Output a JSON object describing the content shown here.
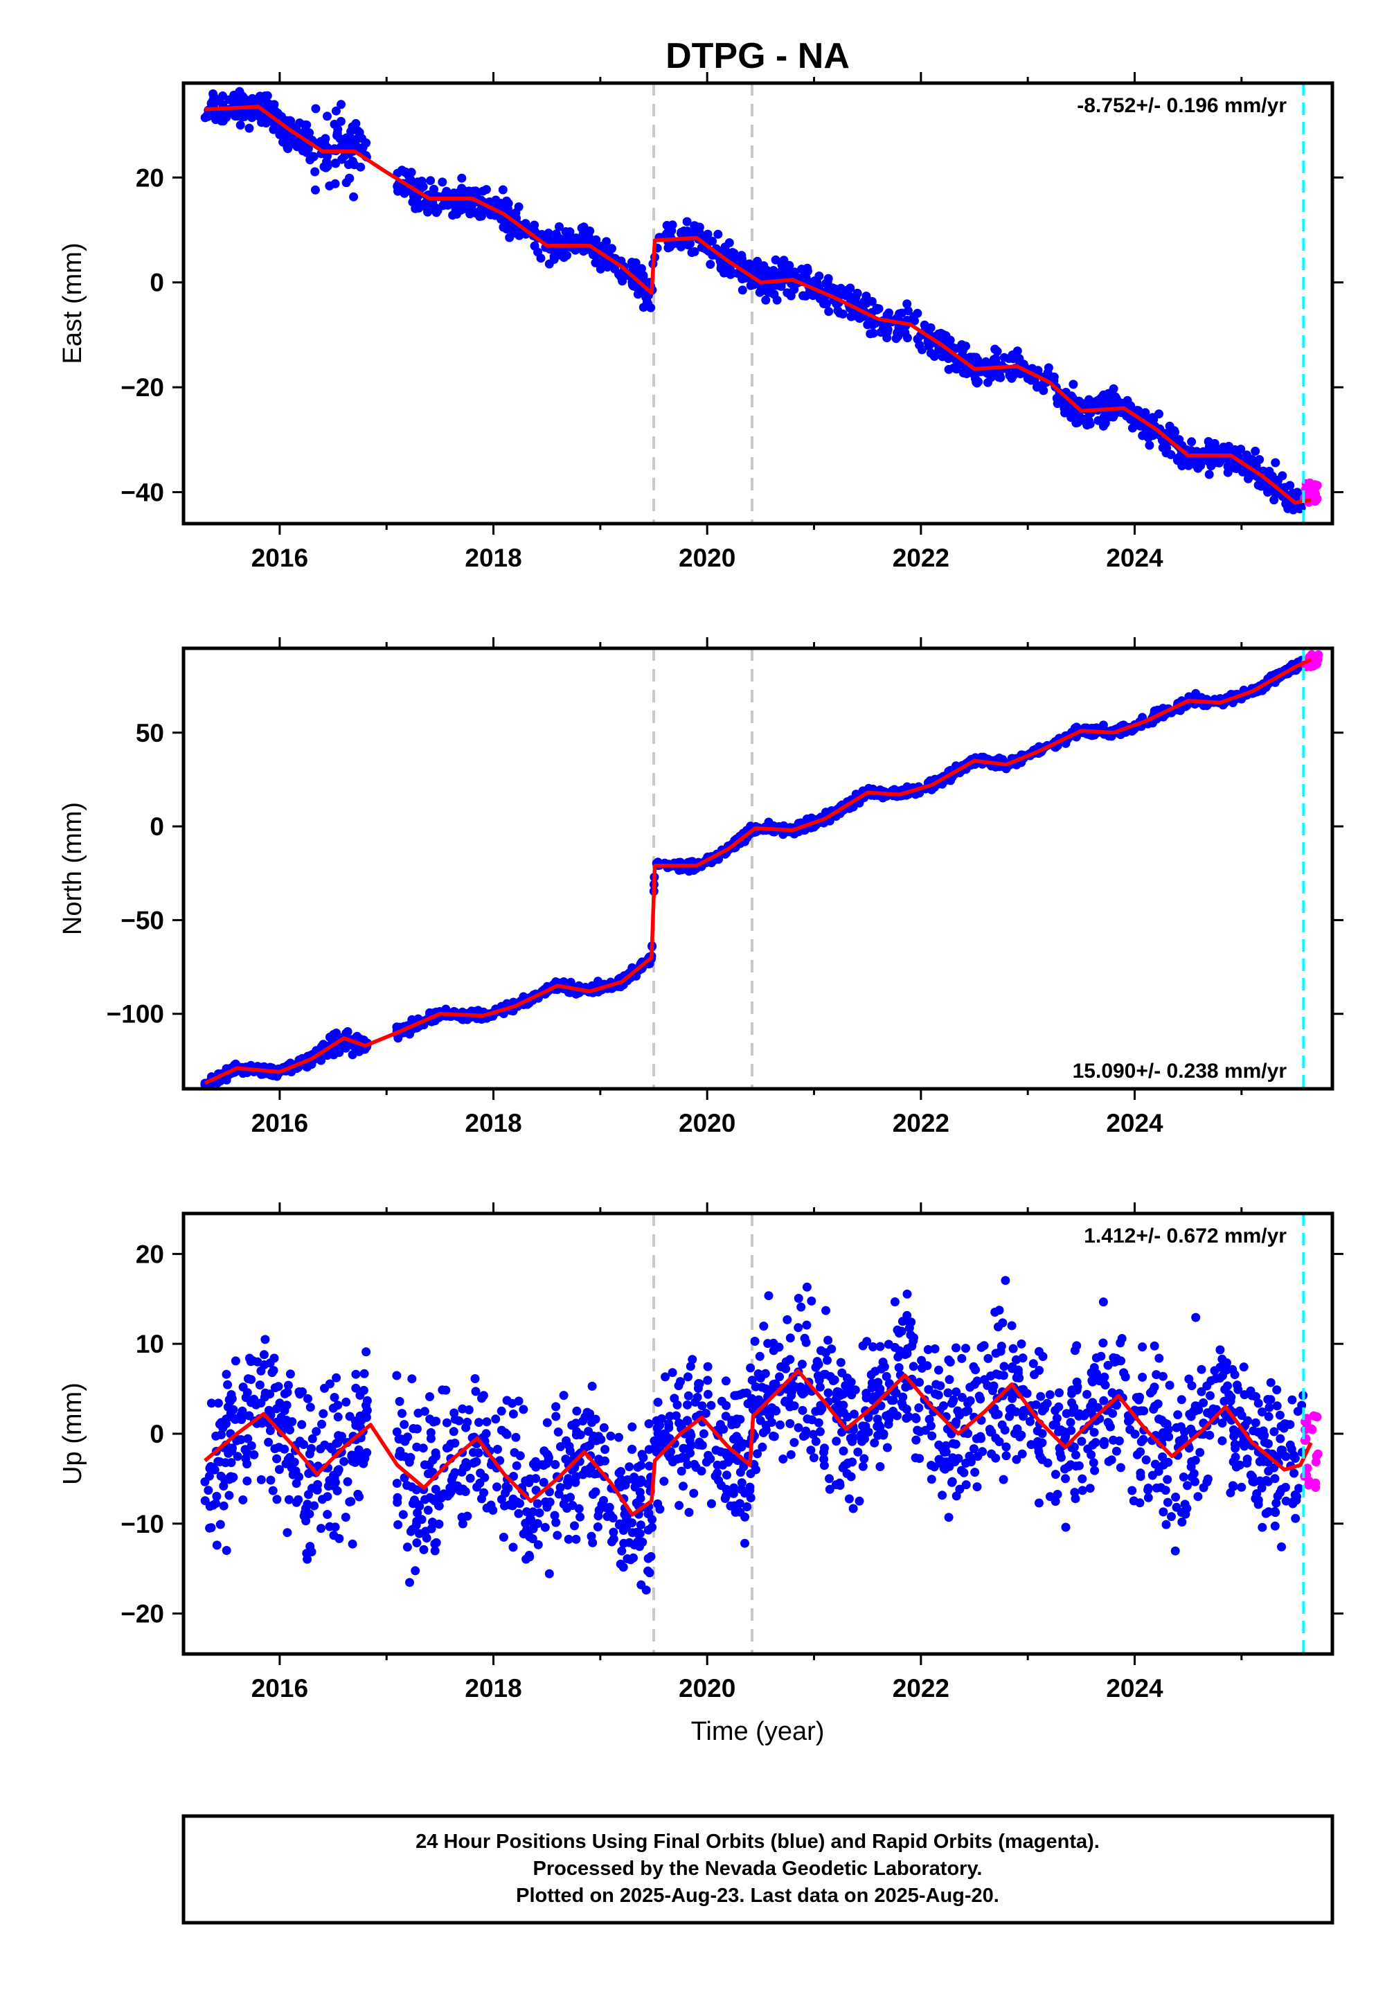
{
  "chart_data": {
    "type": "scatter",
    "title": "DTPG - NA",
    "xlabel": "Time (year)",
    "x_tick_labels": [
      "2016",
      "2018",
      "2020",
      "2022",
      "2024"
    ],
    "xlim": [
      2015.1,
      2025.85
    ],
    "event_lines": {
      "gray_dashed": [
        2019.5,
        2020.42
      ],
      "cyan_dashed": 2025.58
    },
    "colors": {
      "final_orbits": "#0000ff",
      "rapid_orbits": "#ff00ff",
      "model": "#ff0000",
      "event": "#c8c8c8",
      "last_data": "#00ffff"
    },
    "panels": [
      {
        "ylabel": "East (mm)",
        "ylim": [
          -46,
          38
        ],
        "y_ticks": [
          20,
          0,
          -20,
          -40
        ],
        "rate_label": "-8.752+/- 0.196 mm/yr",
        "rate_position": "top-right",
        "model_points": [
          [
            2015.3,
            33
          ],
          [
            2015.8,
            33.5
          ],
          [
            2016.1,
            29
          ],
          [
            2016.4,
            25
          ],
          [
            2016.7,
            25
          ],
          [
            2017.0,
            21
          ],
          [
            2017.4,
            16
          ],
          [
            2017.8,
            16
          ],
          [
            2018.1,
            13
          ],
          [
            2018.5,
            7
          ],
          [
            2018.9,
            7
          ],
          [
            2019.2,
            3
          ],
          [
            2019.48,
            -2
          ],
          [
            2019.51,
            8
          ],
          [
            2019.9,
            8.5
          ],
          [
            2020.2,
            4
          ],
          [
            2020.5,
            0
          ],
          [
            2020.8,
            0.5
          ],
          [
            2021.2,
            -3
          ],
          [
            2021.6,
            -7
          ],
          [
            2021.9,
            -8
          ],
          [
            2022.2,
            -12
          ],
          [
            2022.5,
            -16.5
          ],
          [
            2022.9,
            -16
          ],
          [
            2023.2,
            -19
          ],
          [
            2023.5,
            -24.5
          ],
          [
            2023.9,
            -24
          ],
          [
            2024.2,
            -28
          ],
          [
            2024.5,
            -33
          ],
          [
            2024.9,
            -33
          ],
          [
            2025.2,
            -37
          ],
          [
            2025.5,
            -42
          ],
          [
            2025.65,
            -41.5
          ]
        ],
        "scatter_noise_mm": 1.6,
        "rapid_range_mm": [
          -42,
          -38
        ]
      },
      {
        "ylabel": "North (mm)",
        "ylim": [
          -140,
          95
        ],
        "y_ticks": [
          50,
          0,
          -50,
          -100
        ],
        "rate_label": "15.090+/- 0.238 mm/yr",
        "rate_position": "bottom-right",
        "model_points": [
          [
            2015.3,
            -137
          ],
          [
            2015.6,
            -129
          ],
          [
            2016.0,
            -131
          ],
          [
            2016.3,
            -124
          ],
          [
            2016.6,
            -113
          ],
          [
            2016.8,
            -117
          ],
          [
            2017.1,
            -110
          ],
          [
            2017.5,
            -100
          ],
          [
            2017.9,
            -101
          ],
          [
            2018.2,
            -96
          ],
          [
            2018.6,
            -85
          ],
          [
            2018.9,
            -88
          ],
          [
            2019.2,
            -83
          ],
          [
            2019.48,
            -70
          ],
          [
            2019.51,
            -21
          ],
          [
            2019.9,
            -21
          ],
          [
            2020.2,
            -12
          ],
          [
            2020.45,
            -1
          ],
          [
            2020.8,
            -2
          ],
          [
            2021.1,
            4
          ],
          [
            2021.5,
            18
          ],
          [
            2021.8,
            17
          ],
          [
            2022.1,
            22
          ],
          [
            2022.5,
            35
          ],
          [
            2022.8,
            33
          ],
          [
            2023.1,
            40
          ],
          [
            2023.5,
            51
          ],
          [
            2023.8,
            50
          ],
          [
            2024.1,
            56
          ],
          [
            2024.5,
            67
          ],
          [
            2024.8,
            66
          ],
          [
            2025.1,
            72
          ],
          [
            2025.5,
            85
          ],
          [
            2025.65,
            89
          ]
        ],
        "scatter_noise_mm": 1.4,
        "rapid_range_mm": [
          85,
          92
        ]
      },
      {
        "ylabel": "Up (mm)",
        "ylim": [
          -24.5,
          24.5
        ],
        "y_ticks": [
          20,
          10,
          0,
          -10,
          -20
        ],
        "rate_label": "1.412+/- 0.672 mm/yr",
        "rate_position": "top-right",
        "model_points": [
          [
            2015.3,
            -3
          ],
          [
            2015.6,
            0
          ],
          [
            2015.85,
            2.2
          ],
          [
            2016.1,
            -1
          ],
          [
            2016.35,
            -4.5
          ],
          [
            2016.6,
            -1.5
          ],
          [
            2016.85,
            1
          ],
          [
            2017.1,
            -3.5
          ],
          [
            2017.35,
            -6
          ],
          [
            2017.6,
            -3
          ],
          [
            2017.85,
            -0.5
          ],
          [
            2018.1,
            -4.5
          ],
          [
            2018.35,
            -7.5
          ],
          [
            2018.6,
            -5
          ],
          [
            2018.85,
            -2
          ],
          [
            2019.1,
            -5.5
          ],
          [
            2019.3,
            -9
          ],
          [
            2019.48,
            -7.5
          ],
          [
            2019.51,
            -3
          ],
          [
            2019.75,
            0
          ],
          [
            2019.95,
            1.8
          ],
          [
            2020.2,
            -1.5
          ],
          [
            2020.4,
            -3.5
          ],
          [
            2020.43,
            2
          ],
          [
            2020.6,
            4
          ],
          [
            2020.85,
            7
          ],
          [
            2021.1,
            3.5
          ],
          [
            2021.3,
            0.5
          ],
          [
            2021.55,
            3
          ],
          [
            2021.85,
            6.5
          ],
          [
            2022.1,
            3
          ],
          [
            2022.35,
            0
          ],
          [
            2022.6,
            2.5
          ],
          [
            2022.85,
            5.5
          ],
          [
            2023.1,
            1.5
          ],
          [
            2023.35,
            -1.5
          ],
          [
            2023.6,
            1.5
          ],
          [
            2023.85,
            4.2
          ],
          [
            2024.1,
            0.5
          ],
          [
            2024.35,
            -2.5
          ],
          [
            2024.6,
            0
          ],
          [
            2024.85,
            3
          ],
          [
            2025.1,
            -1
          ],
          [
            2025.4,
            -4
          ],
          [
            2025.55,
            -3.5
          ],
          [
            2025.65,
            -1
          ]
        ],
        "scatter_noise_mm": 4.5,
        "rapid_range_mm": [
          -6,
          2
        ]
      }
    ]
  },
  "footer": {
    "line1": "24 Hour Positions Using Final Orbits (blue) and Rapid Orbits (magenta).",
    "line2": "Processed by the Nevada Geodetic Laboratory.",
    "line3": "Plotted on 2025-Aug-23. Last data on 2025-Aug-20."
  }
}
